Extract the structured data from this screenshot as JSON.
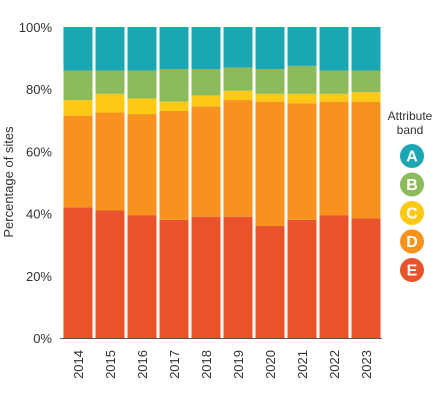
{
  "chart_data": {
    "type": "bar",
    "stacked": true,
    "categories": [
      "2014",
      "2015",
      "2016",
      "2017",
      "2018",
      "2019",
      "2020",
      "2021",
      "2022",
      "2023"
    ],
    "ylabel": "Percentage of sites",
    "ylim": [
      0,
      100
    ],
    "yticks": [
      "0%",
      "20%",
      "40%",
      "60%",
      "80%",
      "100%"
    ],
    "grid": false,
    "legend": {
      "title_lines": [
        "Attribute",
        "band"
      ],
      "placement": "right"
    },
    "series": [
      {
        "name": "E",
        "color": "#e8532b",
        "values": [
          42,
          41,
          39.5,
          38,
          39,
          39,
          36,
          38,
          39.5,
          38.5
        ]
      },
      {
        "name": "D",
        "color": "#f7921e",
        "values": [
          29.5,
          31.5,
          32.5,
          35,
          35.5,
          37.5,
          40,
          37.5,
          36.5,
          37.5
        ]
      },
      {
        "name": "C",
        "color": "#fdc915",
        "values": [
          5,
          6,
          5,
          3,
          3.5,
          3,
          2.5,
          3,
          2.5,
          3
        ]
      },
      {
        "name": "B",
        "color": "#8dbb5b",
        "values": [
          9.5,
          7.5,
          9,
          10.5,
          8.5,
          7.5,
          8,
          9,
          7.5,
          7
        ]
      },
      {
        "name": "A",
        "color": "#1aa6b3",
        "values": [
          14,
          14,
          14,
          13.5,
          13.5,
          13,
          13.5,
          12.5,
          14,
          14
        ]
      }
    ]
  }
}
